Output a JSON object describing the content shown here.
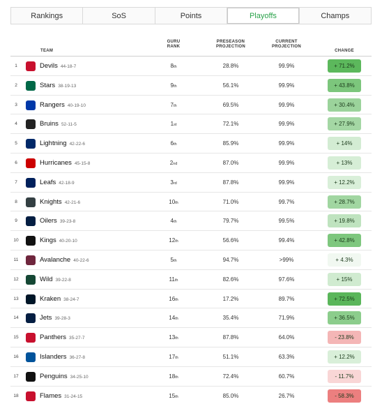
{
  "tabs": [
    {
      "label": "Rankings",
      "active": false
    },
    {
      "label": "SoS",
      "active": false
    },
    {
      "label": "Points",
      "active": false
    },
    {
      "label": "Playoffs",
      "active": true
    },
    {
      "label": "Champs",
      "active": false
    }
  ],
  "headers": {
    "team": "TEAM",
    "guru_rank": "GURU RANK",
    "preseason": "PRESEASON PROJECTION",
    "current": "CURRENT PROJECTION",
    "change": "CHANGE"
  },
  "rows": [
    {
      "rank": "1",
      "name": "Devils",
      "record": "44-18-7",
      "guru": "8",
      "suffix": "th",
      "pre": "28.8%",
      "cur": "99.9%",
      "change": "+ 71.2%",
      "chg_color": "#5cb85c",
      "logo_color": "#c8102e",
      "logo": "devils-logo"
    },
    {
      "rank": "2",
      "name": "Stars",
      "record": "38-19-13",
      "guru": "9",
      "suffix": "th",
      "pre": "56.1%",
      "cur": "99.9%",
      "change": "+ 43.8%",
      "chg_color": "#7cc67c",
      "logo_color": "#006847",
      "logo": "stars-logo"
    },
    {
      "rank": "3",
      "name": "Rangers",
      "record": "40-19-10",
      "guru": "7",
      "suffix": "th",
      "pre": "69.5%",
      "cur": "99.9%",
      "change": "+ 30.4%",
      "chg_color": "#9bd39b",
      "logo_color": "#0038a8",
      "logo": "rangers-logo"
    },
    {
      "rank": "4",
      "name": "Bruins",
      "record": "52-11-5",
      "guru": "1",
      "suffix": "st",
      "pre": "72.1%",
      "cur": "99.9%",
      "change": "+ 27.9%",
      "chg_color": "#a4d7a4",
      "logo_color": "#222222",
      "logo": "bruins-logo"
    },
    {
      "rank": "5",
      "name": "Lightning",
      "record": "42-22-6",
      "guru": "6",
      "suffix": "th",
      "pre": "85.9%",
      "cur": "99.9%",
      "change": "+ 14%",
      "chg_color": "#d3ecd3",
      "logo_color": "#002868",
      "logo": "lightning-logo"
    },
    {
      "rank": "6",
      "name": "Hurricanes",
      "record": "45-15-8",
      "guru": "2",
      "suffix": "nd",
      "pre": "87.0%",
      "cur": "99.9%",
      "change": "+ 13%",
      "chg_color": "#d6eed6",
      "logo_color": "#cc0000",
      "logo": "hurricanes-logo"
    },
    {
      "rank": "7",
      "name": "Leafs",
      "record": "42-18-9",
      "guru": "3",
      "suffix": "rd",
      "pre": "87.8%",
      "cur": "99.9%",
      "change": "+ 12.2%",
      "chg_color": "#d9efd9",
      "logo_color": "#00205b",
      "logo": "leafs-logo"
    },
    {
      "rank": "8",
      "name": "Knights",
      "record": "42-21-6",
      "guru": "10",
      "suffix": "th",
      "pre": "71.0%",
      "cur": "99.7%",
      "change": "+ 28.7%",
      "chg_color": "#a1d6a1",
      "logo_color": "#333f42",
      "logo": "knights-logo"
    },
    {
      "rank": "9",
      "name": "Oilers",
      "record": "39-23-8",
      "guru": "4",
      "suffix": "th",
      "pre": "79.7%",
      "cur": "99.5%",
      "change": "+ 19.8%",
      "chg_color": "#bfe3bf",
      "logo_color": "#041e42",
      "logo": "oilers-logo"
    },
    {
      "rank": "10",
      "name": "Kings",
      "record": "40-20-10",
      "guru": "12",
      "suffix": "th",
      "pre": "56.6%",
      "cur": "99.4%",
      "change": "+ 42.8%",
      "chg_color": "#7ec77e",
      "logo_color": "#111111",
      "logo": "kings-logo"
    },
    {
      "rank": "11",
      "name": "Avalanche",
      "record": "40-22-6",
      "guru": "5",
      "suffix": "th",
      "pre": "94.7%",
      "cur": ">99%",
      "change": "+ 4.3%",
      "chg_color": "#f1f8f1",
      "logo_color": "#6f263d",
      "logo": "avalanche-logo"
    },
    {
      "rank": "12",
      "name": "Wild",
      "record": "39-22-8",
      "guru": "11",
      "suffix": "th",
      "pre": "82.6%",
      "cur": "97.6%",
      "change": "+ 15%",
      "chg_color": "#d0ebd0",
      "logo_color": "#154734",
      "logo": "wild-logo"
    },
    {
      "rank": "13",
      "name": "Kraken",
      "record": "38-24-7",
      "guru": "16",
      "suffix": "th",
      "pre": "17.2%",
      "cur": "89.7%",
      "change": "+ 72.5%",
      "chg_color": "#5ab65a",
      "logo_color": "#001628",
      "logo": "kraken-logo"
    },
    {
      "rank": "14",
      "name": "Jets",
      "record": "39-28-3",
      "guru": "14",
      "suffix": "th",
      "pre": "35.4%",
      "cur": "71.9%",
      "change": "+ 36.5%",
      "chg_color": "#8ccd8c",
      "logo_color": "#041e42",
      "logo": "jets-logo"
    },
    {
      "rank": "15",
      "name": "Panthers",
      "record": "35-27-7",
      "guru": "13",
      "suffix": "th",
      "pre": "87.8%",
      "cur": "64.0%",
      "change": "- 23.8%",
      "chg_color": "#f4b6b6",
      "logo_color": "#c8102e",
      "logo": "panthers-logo"
    },
    {
      "rank": "16",
      "name": "Islanders",
      "record": "36-27-8",
      "guru": "17",
      "suffix": "th",
      "pre": "51.1%",
      "cur": "63.3%",
      "change": "+ 12.2%",
      "chg_color": "#d9efd9",
      "logo_color": "#00539b",
      "logo": "islanders-logo"
    },
    {
      "rank": "17",
      "name": "Penguins",
      "record": "34-25-10",
      "guru": "18",
      "suffix": "th",
      "pre": "72.4%",
      "cur": "60.7%",
      "change": "- 11.7%",
      "chg_color": "#f9d6d6",
      "logo_color": "#111111",
      "logo": "penguins-logo"
    },
    {
      "rank": "18",
      "name": "Flames",
      "record": "31-24-15",
      "guru": "15",
      "suffix": "th",
      "pre": "85.0%",
      "cur": "26.7%",
      "change": "- 58.3%",
      "chg_color": "#ec7f7f",
      "logo_color": "#c8102e",
      "logo": "flames-logo"
    }
  ]
}
